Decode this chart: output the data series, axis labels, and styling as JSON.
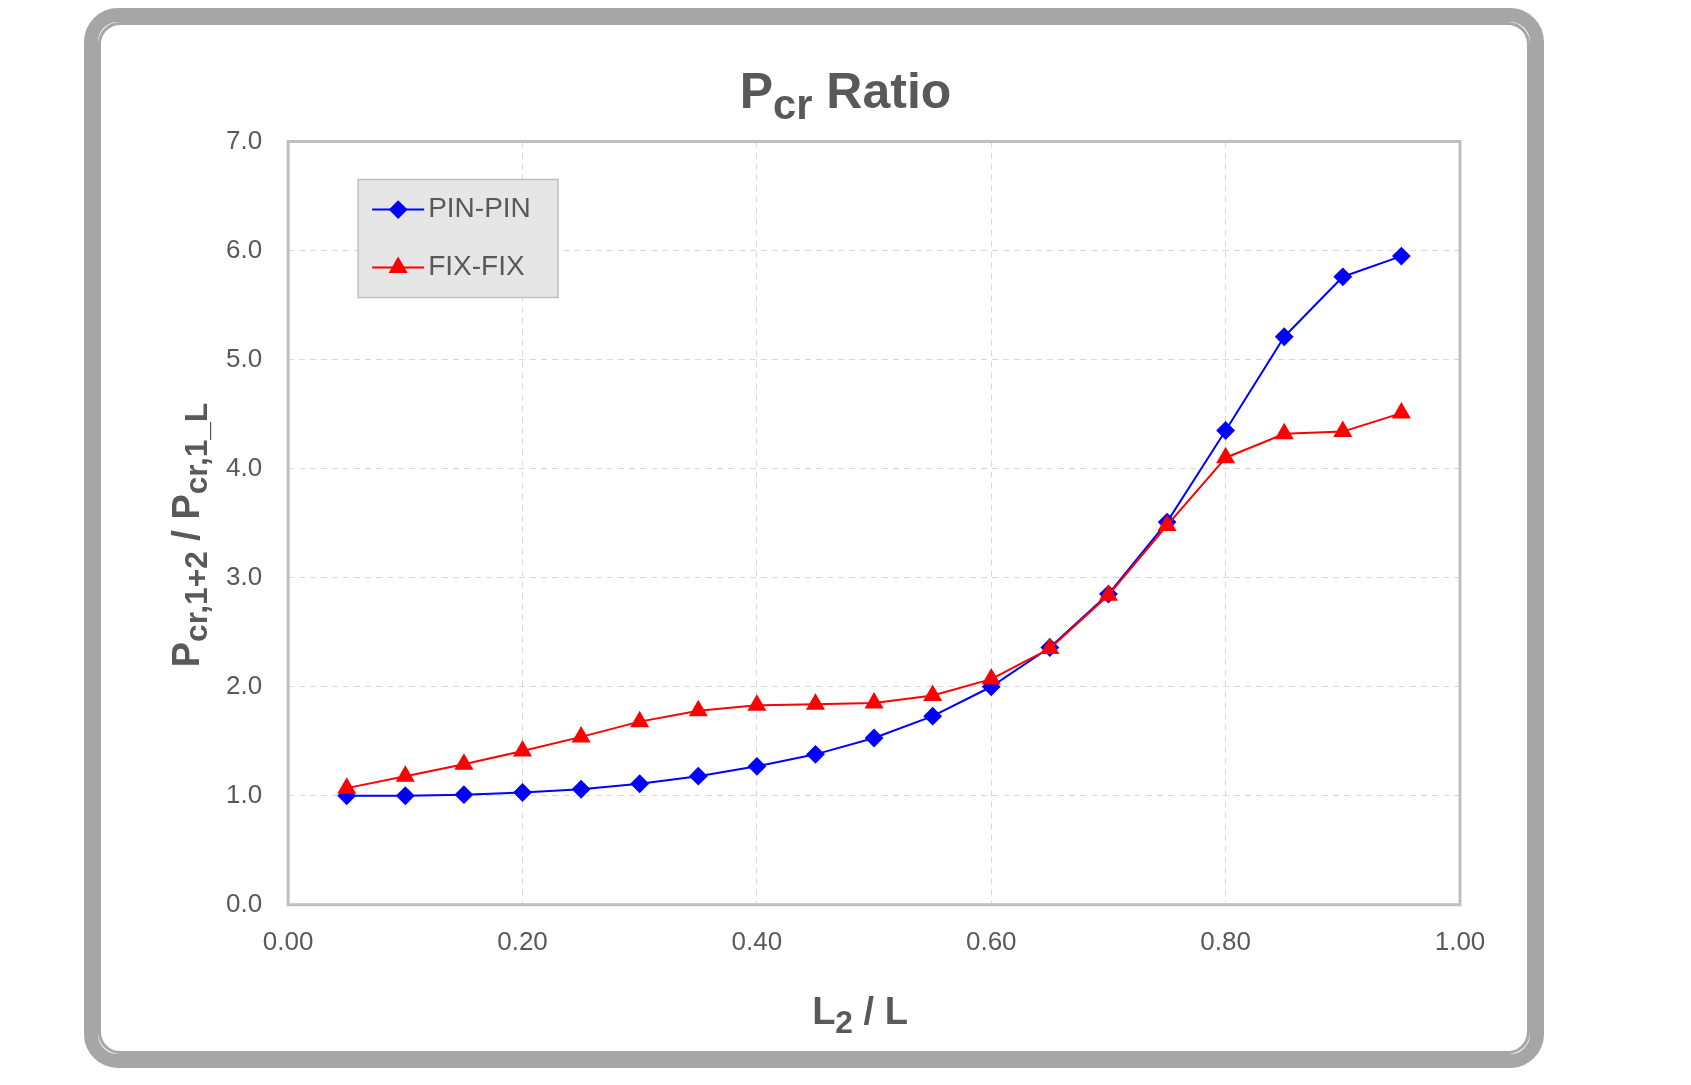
{
  "chart_data": {
    "type": "line",
    "title": "P$_{cr}$ Ratio",
    "xlabel": "L$_{2}$ / L",
    "ylabel": "P$_{cr,1+2}$ / P$_{cr,1_L}$",
    "x": [
      0.05,
      0.1,
      0.15,
      0.2,
      0.25,
      0.3,
      0.35,
      0.4,
      0.45,
      0.5,
      0.55,
      0.6,
      0.65,
      0.7,
      0.75,
      0.8,
      0.85,
      0.9,
      0.95
    ],
    "series": [
      {
        "name": "PIN-PIN",
        "color": "#0000ff",
        "marker": "diamond",
        "values": [
          1.0,
          1.0,
          1.01,
          1.03,
          1.06,
          1.11,
          1.18,
          1.27,
          1.38,
          1.53,
          1.73,
          2.0,
          2.36,
          2.85,
          3.51,
          4.35,
          5.21,
          5.76,
          5.95
        ]
      },
      {
        "name": "FIX-FIX",
        "color": "#ff0000",
        "marker": "triangle",
        "values": [
          1.07,
          1.18,
          1.29,
          1.41,
          1.54,
          1.68,
          1.78,
          1.83,
          1.84,
          1.85,
          1.92,
          2.07,
          2.35,
          2.84,
          3.48,
          4.1,
          4.32,
          4.34,
          4.51
        ]
      }
    ],
    "xlim": [
      0,
      1
    ],
    "xticks": [
      {
        "value": 0,
        "label": "0.00"
      },
      {
        "value": 0.2,
        "label": "0.20"
      },
      {
        "value": 0.4,
        "label": "0.40"
      },
      {
        "value": 0.6,
        "label": "0.60"
      },
      {
        "value": 0.8,
        "label": "0.80"
      },
      {
        "value": 1,
        "label": "1.00"
      }
    ],
    "ylim": [
      0,
      7
    ],
    "yticks": [
      {
        "value": 0,
        "label": "0.0"
      },
      {
        "value": 1,
        "label": "1.0"
      },
      {
        "value": 2,
        "label": "2.0"
      },
      {
        "value": 3,
        "label": "3.0"
      },
      {
        "value": 4,
        "label": "4.0"
      },
      {
        "value": 5,
        "label": "5.0"
      },
      {
        "value": 6,
        "label": "6.0"
      },
      {
        "value": 7,
        "label": "7.0"
      }
    ],
    "grid": true,
    "legend": "top left",
    "line_style": "solid"
  }
}
